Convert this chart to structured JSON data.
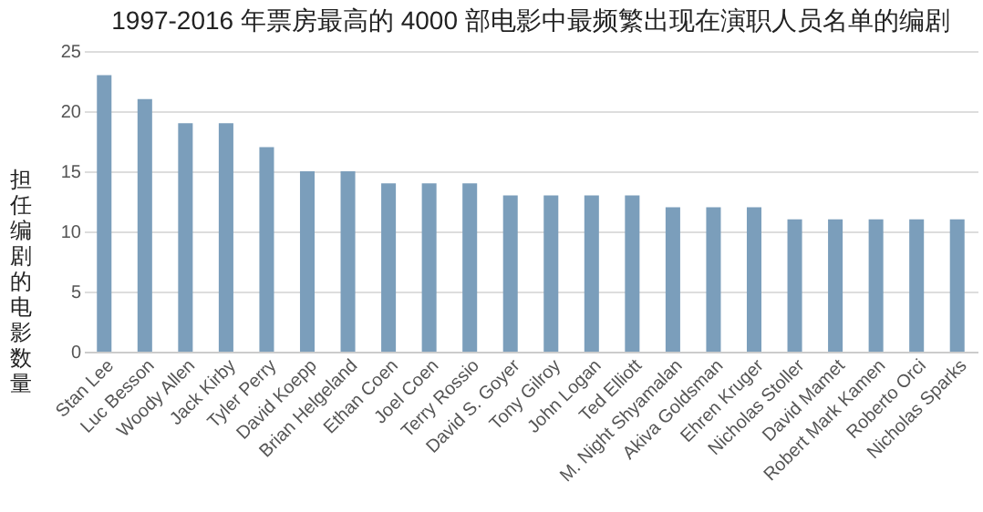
{
  "chart_data": {
    "type": "bar",
    "title": "1997-2016 年票房最高的 4000 部电影中最频繁出现在演职人员名单的编剧",
    "ylabel": "担任编剧的电影数量",
    "categories": [
      "Stan Lee",
      "Luc Besson",
      "Woody Allen",
      "Jack Kirby",
      "Tyler Perry",
      "David Koepp",
      "Brian Helgeland",
      "Ethan Coen",
      "Joel Coen",
      "Terry Rossio",
      "David S. Goyer",
      "Tony Gilroy",
      "John Logan",
      "Ted Elliott",
      "M. Night Shyamalan",
      "Akiva Goldsman",
      "Ehren Kruger",
      "Nicholas Stoller",
      "David Mamet",
      "Robert Mark Kamen",
      "Roberto Orci",
      "Nicholas Sparks"
    ],
    "values": [
      23,
      21,
      19,
      19,
      17,
      15,
      15,
      14,
      14,
      14,
      13,
      13,
      13,
      13,
      12,
      12,
      12,
      11,
      11,
      11,
      11,
      11
    ],
    "color": "#7b9ebb",
    "ylim": [
      0,
      25
    ],
    "yticks": [
      0,
      5,
      10,
      15,
      20,
      25
    ],
    "grid": "y"
  }
}
